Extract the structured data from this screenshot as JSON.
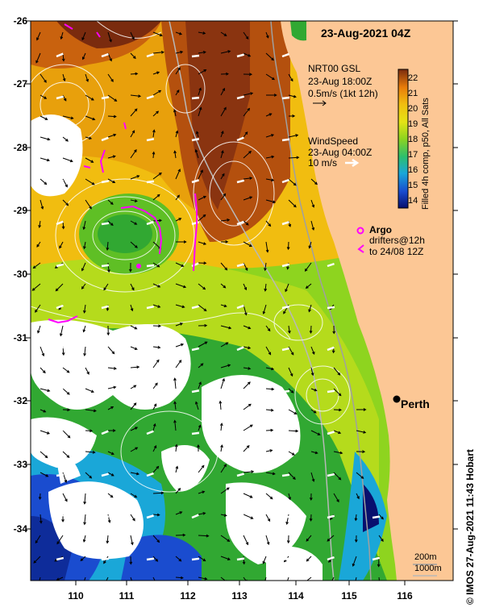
{
  "title": "23-Aug-2021 04Z",
  "credit": "© IMOS 27-Aug-2021 11:43 Hobart",
  "colorbar": {
    "label": "Filled 4h comp, p50, All Sats",
    "ticks": [
      "22",
      "21",
      "20",
      "19",
      "18",
      "17",
      "16",
      "15",
      "14"
    ],
    "colors": [
      "#08106e",
      "#1a4ccf",
      "#1aa7d8",
      "#2dbf6e",
      "#31a832",
      "#8ed41f",
      "#e4e315",
      "#f1bd10",
      "#e87d0a",
      "#b4440d",
      "#7a2b0e"
    ]
  },
  "current_legend": {
    "line1": "NRT00 GSL",
    "line2": "23-Aug 18:00Z",
    "line3": "0.5m/s (1kt 12h)"
  },
  "wind_legend": {
    "line1": "WindSpeed",
    "line2": "23-Aug 04:00Z",
    "line3": "10 m/s"
  },
  "argo_legend": {
    "line1": "Argo",
    "line2": "drifters@12h",
    "line3": "to 24/08 12Z"
  },
  "city": {
    "name": "Perth"
  },
  "isobath_legend": {
    "line1": "200m",
    "line2": "1000m"
  },
  "axes": {
    "lat_ticks": [
      "-26",
      "-27",
      "-28",
      "-29",
      "-30",
      "-31",
      "-32",
      "-33",
      "-34"
    ],
    "lon_ticks": [
      "110",
      "111",
      "112",
      "113",
      "114",
      "115",
      "116"
    ]
  },
  "colors": {
    "land": "#fcc795",
    "isobath_200": "#a0a0a0",
    "isobath_1000": "#b8b8b8",
    "argo": "#ff00ff",
    "contour": "#ffffff"
  }
}
